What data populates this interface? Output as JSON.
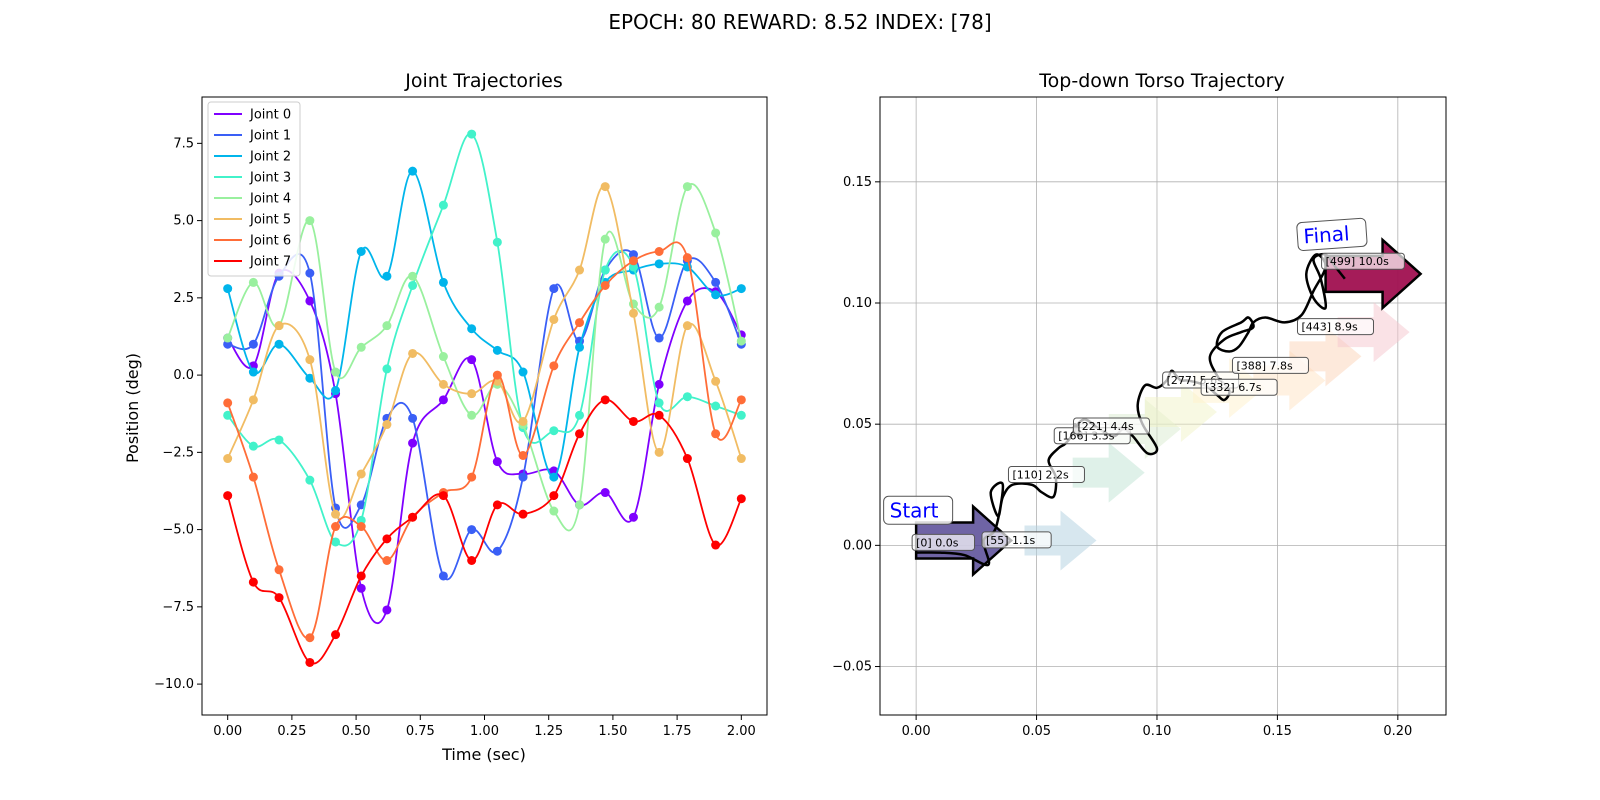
{
  "figure_title": "EPOCH:  80 REWARD:   8.52 INDEX: [78]",
  "chart_data": [
    {
      "type": "line",
      "title": "Joint Trajectories",
      "xlabel": "Time (sec)",
      "ylabel": "Position (deg)",
      "xlim": [
        -0.1,
        2.1
      ],
      "ylim": [
        -11.0,
        9.0
      ],
      "xticks": [
        "0.00",
        "0.25",
        "0.50",
        "0.75",
        "1.00",
        "1.25",
        "1.50",
        "1.75",
        "2.00"
      ],
      "yticks": [
        "−10.0",
        "−7.5",
        "−5.0",
        "−2.5",
        "0.0",
        "2.5",
        "5.0",
        "7.5"
      ],
      "grid": false,
      "legend": "top-left",
      "marker_x": [
        0.0,
        0.1,
        0.2,
        0.32,
        0.42,
        0.52,
        0.62,
        0.72,
        0.84,
        0.95,
        1.05,
        1.15,
        1.27,
        1.37,
        1.47,
        1.58,
        1.68,
        1.79,
        1.9,
        2.0
      ],
      "series": [
        {
          "name": "Joint 0",
          "color": "#7f00ff",
          "values": [
            1.2,
            0.3,
            3.3,
            2.4,
            -0.6,
            -6.9,
            -7.6,
            -2.2,
            -0.8,
            0.5,
            -2.8,
            -3.2,
            -3.1,
            -4.2,
            -3.8,
            -4.6,
            -0.3,
            2.4,
            2.7,
            1.3
          ]
        },
        {
          "name": "Joint 1",
          "color": "#3a5ff6",
          "values": [
            1.0,
            1.0,
            3.2,
            3.3,
            -4.3,
            -4.2,
            -1.4,
            -1.4,
            -6.5,
            -5.0,
            -5.7,
            -3.3,
            2.8,
            1.1,
            3.4,
            3.9,
            1.2,
            3.7,
            3.0,
            1.0
          ]
        },
        {
          "name": "Joint 2",
          "color": "#00b5eb",
          "values": [
            2.8,
            0.1,
            1.0,
            -0.1,
            -0.5,
            4.0,
            3.2,
            6.6,
            3.0,
            1.5,
            0.8,
            0.1,
            -3.3,
            0.9,
            3.0,
            3.4,
            3.6,
            3.5,
            2.6,
            2.8
          ]
        },
        {
          "name": "Joint 3",
          "color": "#42f2ca",
          "values": [
            -1.3,
            -2.3,
            -2.1,
            -3.4,
            -5.4,
            -4.7,
            0.2,
            2.9,
            5.5,
            7.8,
            4.3,
            -1.7,
            -1.8,
            -1.3,
            3.4,
            3.5,
            -0.9,
            -0.7,
            -1.0,
            -1.3
          ]
        },
        {
          "name": "Joint 4",
          "color": "#99f09e",
          "values": [
            1.2,
            3.0,
            1.6,
            5.0,
            0.1,
            0.9,
            1.6,
            3.2,
            0.6,
            -1.3,
            -0.3,
            -1.6,
            -4.4,
            -4.2,
            4.4,
            2.3,
            2.2,
            6.1,
            4.6,
            1.1
          ]
        },
        {
          "name": "Joint 5",
          "color": "#f1bc63",
          "values": [
            -2.7,
            -0.8,
            1.6,
            0.5,
            -4.5,
            -3.2,
            -1.6,
            0.7,
            -0.3,
            -0.6,
            -0.2,
            -1.5,
            1.8,
            3.4,
            6.1,
            2.0,
            -2.5,
            1.6,
            -0.2,
            -2.7
          ]
        },
        {
          "name": "Joint 6",
          "color": "#ff6d38",
          "values": [
            -0.9,
            -3.3,
            -6.3,
            -8.5,
            -4.9,
            -4.9,
            -6.0,
            -4.6,
            -3.8,
            -3.3,
            0.0,
            -2.6,
            0.3,
            1.7,
            2.9,
            3.7,
            4.0,
            3.8,
            -1.9,
            -0.8
          ]
        },
        {
          "name": "Joint 7",
          "color": "#ff0000",
          "values": [
            -3.9,
            -6.7,
            -7.2,
            -9.3,
            -8.4,
            -6.5,
            -5.3,
            -4.6,
            -3.9,
            -6.0,
            -4.2,
            -4.5,
            -3.9,
            -1.9,
            -0.8,
            -1.5,
            -1.3,
            -2.7,
            -5.5,
            -4.0
          ]
        }
      ]
    },
    {
      "type": "line",
      "title": "Top-down Torso Trajectory",
      "xlim": [
        -0.015,
        0.22
      ],
      "ylim": [
        -0.07,
        0.185
      ],
      "xticks": [
        "0.00",
        "0.05",
        "0.10",
        "0.15",
        "0.20"
      ],
      "yticks": [
        "−0.05",
        "0.00",
        "0.05",
        "0.10",
        "0.15"
      ],
      "grid": true,
      "start_label": "Start",
      "final_label": "Final",
      "path_color": "#000000",
      "path": {
        "x": [
          0.0,
          0.01,
          0.02,
          0.03,
          0.028,
          0.033,
          0.036,
          0.031,
          0.034,
          0.036,
          0.04,
          0.048,
          0.052,
          0.057,
          0.058,
          0.055,
          0.059,
          0.062,
          0.065,
          0.066,
          0.068,
          0.066,
          0.07,
          0.076,
          0.082,
          0.086,
          0.09,
          0.096,
          0.1,
          0.094,
          0.092,
          0.095,
          0.1,
          0.104,
          0.106,
          0.108,
          0.11,
          0.113,
          0.12,
          0.125,
          0.128,
          0.13,
          0.125,
          0.122,
          0.128,
          0.135,
          0.14,
          0.138,
          0.135,
          0.127,
          0.125,
          0.13,
          0.134,
          0.138,
          0.14,
          0.145,
          0.153,
          0.16,
          0.165,
          0.17,
          0.166,
          0.162,
          0.165,
          0.17,
          0.168,
          0.165,
          0.17,
          0.174,
          0.178
        ],
        "y": [
          -0.003,
          -0.003,
          -0.004,
          -0.008,
          0.002,
          0.007,
          0.025,
          0.022,
          0.012,
          0.02,
          0.025,
          0.025,
          0.022,
          0.02,
          0.028,
          0.035,
          0.04,
          0.042,
          0.046,
          0.05,
          0.045,
          0.048,
          0.052,
          0.048,
          0.045,
          0.048,
          0.045,
          0.038,
          0.04,
          0.05,
          0.058,
          0.066,
          0.065,
          0.068,
          0.072,
          0.07,
          0.068,
          0.068,
          0.066,
          0.062,
          0.06,
          0.064,
          0.07,
          0.078,
          0.085,
          0.088,
          0.09,
          0.094,
          0.092,
          0.088,
          0.082,
          0.08,
          0.082,
          0.088,
          0.092,
          0.094,
          0.092,
          0.095,
          0.105,
          0.115,
          0.12,
          0.112,
          0.102,
          0.098,
          0.11,
          0.118,
          0.12,
          0.115,
          0.11
        ]
      },
      "arrows": [
        {
          "x": 0.0,
          "y": 0.002,
          "color": "#4b3d8f",
          "opacity": 0.8,
          "size": "large"
        },
        {
          "x": 0.045,
          "y": 0.002,
          "color": "#b0cfe0",
          "opacity": 0.5,
          "size": "normal"
        },
        {
          "x": 0.065,
          "y": 0.03,
          "color": "#bfe3d4",
          "opacity": 0.5,
          "size": "normal"
        },
        {
          "x": 0.08,
          "y": 0.048,
          "color": "#d9eccf",
          "opacity": 0.5,
          "size": "normal"
        },
        {
          "x": 0.095,
          "y": 0.055,
          "color": "#f2f4c8",
          "opacity": 0.5,
          "size": "normal"
        },
        {
          "x": 0.115,
          "y": 0.065,
          "color": "#fff1cc",
          "opacity": 0.5,
          "size": "normal"
        },
        {
          "x": 0.14,
          "y": 0.068,
          "color": "#ffe3c4",
          "opacity": 0.5,
          "size": "normal"
        },
        {
          "x": 0.155,
          "y": 0.078,
          "color": "#fcd4b8",
          "opacity": 0.5,
          "size": "normal"
        },
        {
          "x": 0.175,
          "y": 0.088,
          "color": "#f6c6cd",
          "opacity": 0.5,
          "size": "normal"
        },
        {
          "x": 0.17,
          "y": 0.112,
          "color": "#a01050",
          "opacity": 0.95,
          "size": "large"
        }
      ],
      "annotations": [
        {
          "text": "[0] 0.0s",
          "x": 0.0,
          "y": 0.0
        },
        {
          "text": "[55] 1.1s",
          "x": 0.029,
          "y": 0.001
        },
        {
          "text": "[110] 2.2s",
          "x": 0.04,
          "y": 0.028
        },
        {
          "text": "[166] 3.3s",
          "x": 0.059,
          "y": 0.044
        },
        {
          "text": "[221] 4.4s",
          "x": 0.067,
          "y": 0.048
        },
        {
          "text": "[277] 5.6s",
          "x": 0.104,
          "y": 0.067
        },
        {
          "text": "[332] 6.7s",
          "x": 0.12,
          "y": 0.064
        },
        {
          "text": "[388] 7.8s",
          "x": 0.133,
          "y": 0.073
        },
        {
          "text": "[443] 8.9s",
          "x": 0.16,
          "y": 0.089
        },
        {
          "text": "[499] 10.0s",
          "x": 0.17,
          "y": 0.116
        }
      ]
    }
  ]
}
